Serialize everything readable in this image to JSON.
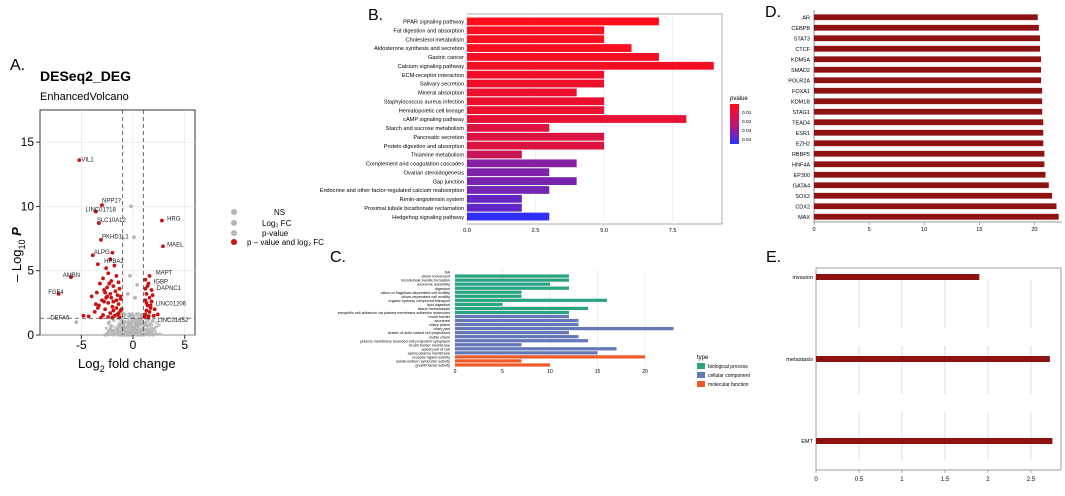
{
  "panel_labels": {
    "A": "A.",
    "B": "B.",
    "C": "C.",
    "D": "D.",
    "E": "E."
  },
  "colors": {
    "ns": "#b5b5b5",
    "sig": "#cc1111",
    "kegg_high": "#ff0d1a",
    "kegg_low": "#2f2fff",
    "bp": "#2aa382",
    "cc": "#6378b8",
    "mf": "#ee5a2a",
    "tf_bar": "#8e1212",
    "ox_bar": "#8e1212"
  },
  "chart_data": [
    {
      "id": "A",
      "type": "scatter",
      "title": "DESeq2_DEG",
      "subtitle": "EnhancedVolcano",
      "xlabel": "Log",
      "xlabel_sub": "2",
      "xlabel_tail": " fold change",
      "ylabel": "– Log",
      "ylabel_sub": "10",
      "ylabel_tail": " P",
      "xlim": [
        -9,
        6
      ],
      "ylim": [
        0,
        17.5
      ],
      "xticks": [
        -5,
        0,
        5
      ],
      "yticks": [
        0,
        5,
        10,
        15
      ],
      "fc_cutoff": [
        -1,
        1
      ],
      "p_cutoff": 1.3,
      "legend": [
        "NS",
        "Log₂ FC",
        "p-value",
        "p – value and log₂ FC"
      ],
      "gene_labels": [
        {
          "name": "VIL1",
          "x": -5.0,
          "y": 13.5
        },
        {
          "name": "NPP1?",
          "x": -3.0,
          "y": 10.3
        },
        {
          "name": "LINC01?18",
          "x": -4.6,
          "y": 9.6
        },
        {
          "name": "SLC10A12",
          "x": -3.5,
          "y": 8.8
        },
        {
          "name": "PKHD1L1",
          "x": -3.0,
          "y": 7.5
        },
        {
          "name": "ALPG",
          "x": -3.8,
          "y": 6.3
        },
        {
          "name": "HPBA2",
          "x": -2.8,
          "y": 5.6
        },
        {
          "name": "AMBN",
          "x": -6.8,
          "y": 4.5
        },
        {
          "name": "FGF4",
          "x": -8.2,
          "y": 3.2
        },
        {
          "name": "DEFA6",
          "x": -8.0,
          "y": 1.2
        },
        {
          "name": "HRG",
          "x": 3.3,
          "y": 8.9
        },
        {
          "name": "MAEL",
          "x": 3.3,
          "y": 6.9
        },
        {
          "name": "MAPT",
          "x": 2.2,
          "y": 4.7
        },
        {
          "name": "IGBP",
          "x": 2.0,
          "y": 4.0
        },
        {
          "name": "DAPNC1",
          "x": 2.3,
          "y": 3.5
        },
        {
          "name": "LINC01206",
          "x": 2.2,
          "y": 2.3
        },
        {
          "name": "LINC01652",
          "x": 2.4,
          "y": 1.0
        }
      ],
      "points": [
        [
          -5.2,
          13.6
        ],
        [
          -3.0,
          10.1
        ],
        [
          -3.6,
          9.6
        ],
        [
          -3.3,
          8.7
        ],
        [
          -3.1,
          7.4
        ],
        [
          -3.9,
          6.2
        ],
        [
          -3.4,
          5.5
        ],
        [
          -6.0,
          4.5
        ],
        [
          -7.2,
          3.2
        ],
        [
          -5.5,
          1.0
        ],
        [
          2.8,
          8.9
        ],
        [
          2.9,
          6.9
        ],
        [
          1.6,
          4.6
        ],
        [
          1.5,
          4.0
        ],
        [
          1.8,
          3.5
        ],
        [
          1.7,
          2.3
        ],
        [
          1.9,
          1.1
        ],
        [
          -2.0,
          6.4
        ],
        [
          -2.2,
          5.9
        ],
        [
          -1.8,
          5.4
        ],
        [
          -2.6,
          5.2
        ],
        [
          -2.4,
          4.8
        ],
        [
          -1.6,
          4.6
        ],
        [
          -2.9,
          4.4
        ],
        [
          -2.1,
          4.2
        ],
        [
          -1.4,
          4.1
        ],
        [
          -3.2,
          4.0
        ],
        [
          -1.9,
          3.8
        ],
        [
          -2.5,
          3.7
        ],
        [
          -1.3,
          3.6
        ],
        [
          -2.8,
          3.5
        ],
        [
          -1.7,
          3.4
        ],
        [
          -3.5,
          3.3
        ],
        [
          -2.2,
          3.2
        ],
        [
          -1.5,
          3.1
        ],
        [
          -4.0,
          3.0
        ],
        [
          -2.6,
          2.9
        ],
        [
          -1.2,
          2.8
        ],
        [
          -3.0,
          2.7
        ],
        [
          -1.9,
          2.6
        ],
        [
          -2.4,
          2.5
        ],
        [
          -1.4,
          2.4
        ],
        [
          -3.3,
          2.3
        ],
        [
          -2.0,
          2.2
        ],
        [
          -1.6,
          2.1
        ],
        [
          -2.7,
          2.0
        ],
        [
          -1.2,
          1.9
        ],
        [
          -3.7,
          1.8
        ],
        [
          -2.2,
          1.7
        ],
        [
          -1.5,
          1.6
        ],
        [
          -2.9,
          1.55
        ],
        [
          -1.8,
          1.5
        ],
        [
          -4.3,
          1.45
        ],
        [
          -2.4,
          1.4
        ],
        [
          -1.3,
          1.38
        ],
        [
          -3.1,
          1.36
        ],
        [
          -2.0,
          1.34
        ],
        [
          -4.8,
          1.5
        ],
        [
          -3.6,
          2.4
        ],
        [
          -2.5,
          3.0
        ],
        [
          -1.1,
          2.0
        ],
        [
          -1.2,
          3.0
        ],
        [
          -1.6,
          2.7
        ],
        [
          -2.3,
          4.0
        ],
        [
          -2.7,
          3.3
        ],
        [
          -3.4,
          2.1
        ],
        [
          -1.9,
          1.9
        ],
        [
          -2.1,
          2.9
        ],
        [
          -1.4,
          1.7
        ],
        [
          -2.8,
          2.6
        ],
        [
          1.2,
          4.3
        ],
        [
          1.4,
          3.8
        ],
        [
          1.3,
          3.2
        ],
        [
          1.6,
          2.9
        ],
        [
          1.2,
          2.7
        ],
        [
          1.8,
          2.6
        ],
        [
          1.4,
          2.3
        ],
        [
          2.1,
          2.0
        ],
        [
          1.3,
          1.9
        ],
        [
          1.6,
          1.8
        ],
        [
          1.2,
          1.6
        ],
        [
          2.0,
          1.5
        ],
        [
          1.5,
          1.45
        ],
        [
          1.1,
          1.4
        ],
        [
          2.4,
          1.6
        ],
        [
          1.7,
          2.1
        ],
        [
          1.3,
          2.5
        ],
        [
          1.9,
          3.1
        ],
        [
          1.2,
          3.6
        ],
        [
          1.5,
          1.35
        ],
        [
          -0.2,
          10.0
        ],
        [
          0.1,
          7.6
        ],
        [
          -0.3,
          4.6
        ],
        [
          0.4,
          3.9
        ],
        [
          -0.5,
          3.2
        ],
        [
          0.2,
          2.9
        ]
      ]
    },
    {
      "id": "B",
      "type": "bar",
      "orientation": "horizontal",
      "categories": [
        "PPAR signaling pathway",
        "Fat digestion and absorption",
        "Cholesterol metabolism",
        "Aldosterone synthesis and secretion",
        "Gastric cancer",
        "Calcium signaling pathway",
        "ECM-receptor interaction",
        "Salivary secretion",
        "Mineral absorption",
        "Staphylococcus aureus infection",
        "Hematopoietic cell lineage",
        "cAMP signaling pathway",
        "Starch and sucrose metabolism",
        "Pancreatic secretion",
        "Protein digestion and absorption",
        "Thiamine metabolism",
        "Complement and coagulation cascades",
        "Ovarian steroidogenesis",
        "Gap junction",
        "Endocrine and other factor-regulated calcium reabsorption",
        "Renin-angiotensin system",
        "Proximal tubule bicarbonate reclamation",
        "Hedgehog signaling pathway"
      ],
      "values": [
        7,
        5,
        5,
        6,
        7,
        9,
        5,
        5,
        4,
        5,
        5,
        8,
        3,
        5,
        5,
        2,
        4,
        3,
        4,
        3,
        2,
        2,
        3
      ],
      "pvalues": [
        0.003,
        0.004,
        0.004,
        0.004,
        0.005,
        0.005,
        0.006,
        0.006,
        0.007,
        0.007,
        0.007,
        0.008,
        0.01,
        0.01,
        0.01,
        0.014,
        0.028,
        0.029,
        0.03,
        0.031,
        0.034,
        0.035,
        0.045
      ],
      "xlim": [
        0,
        9.3
      ],
      "xticks": [
        "0.0",
        "2.5",
        "5.0",
        "7.5"
      ],
      "xtick_values": [
        0,
        2.5,
        5,
        7.5
      ],
      "legend_title": "pvalue",
      "legend_ticks": [
        "0.01",
        "0.02",
        "0.03",
        "0.04"
      ]
    },
    {
      "id": "C",
      "type": "bar",
      "orientation": "horizontal",
      "categories": [
        "NA",
        "cilium movement",
        "microtubule bundle formation",
        "axoneme assembly",
        "digestion",
        "cilium or flagellum-dependent cell motility",
        "cilium-dependent cell motility",
        "organic hydroxy compound transport",
        "lipid digestion",
        "tissue homeostasis",
        "emophilic cell adhesion via plasma membrane adhesion molecules",
        "brush border",
        "axoneme",
        "ciliary plasm",
        "cilary part",
        "cluster of actin-based cell projections",
        "motile cilium",
        "plasma membrane bounded cell projection cytoplasm",
        "brush border membrane",
        "apical part of cell",
        "apical plasma membrane",
        "receptor ligand activity",
        "solute:sodium symporter activity",
        "growth factor activity"
      ],
      "values": [
        0,
        12,
        12,
        10,
        12,
        7,
        7,
        16,
        5,
        14,
        12,
        12,
        13,
        13,
        23,
        12,
        13,
        14,
        7,
        17,
        15,
        20,
        7,
        10
      ],
      "types": [
        "none",
        "bp",
        "bp",
        "bp",
        "bp",
        "bp",
        "bp",
        "bp",
        "bp",
        "bp",
        "bp",
        "cc",
        "cc",
        "cc",
        "cc",
        "cc",
        "cc",
        "cc",
        "cc",
        "cc",
        "cc",
        "mf",
        "mf",
        "mf"
      ],
      "xlim": [
        0,
        24
      ],
      "xticks": [
        "0",
        "5",
        "10",
        "15",
        "20"
      ],
      "xtick_values": [
        0,
        5,
        10,
        15,
        20
      ],
      "legend_title": "type",
      "legend": [
        "biological process",
        "cellular component",
        "molecular function"
      ]
    },
    {
      "id": "D",
      "type": "bar",
      "orientation": "horizontal",
      "categories": [
        "AR",
        "CEBPB",
        "STAT3",
        "CTCF",
        "KDM5A",
        "SMAD2",
        "POLR2A",
        "FOXA1",
        "KDM1B",
        "STAG1",
        "TEAD4",
        "ESR1",
        "EZH2",
        "RBBP5",
        "HNF4A",
        "EP300",
        "GATA4",
        "SOX2",
        "CDX2",
        "MAX"
      ],
      "values": [
        20.3,
        20.4,
        20.5,
        20.5,
        20.6,
        20.6,
        20.6,
        20.7,
        20.7,
        20.7,
        20.8,
        20.8,
        20.8,
        20.9,
        20.9,
        21.0,
        21.3,
        21.6,
        22.0,
        22.2
      ],
      "xlim": [
        0,
        22.5
      ],
      "xticks": [
        "0",
        "5",
        "10",
        "15",
        "20"
      ],
      "xtick_values": [
        0,
        5,
        10,
        15,
        20
      ]
    },
    {
      "id": "E",
      "type": "bar",
      "orientation": "horizontal",
      "categories": [
        "invasion",
        "metastasis",
        "EMT"
      ],
      "values": [
        1.9,
        2.72,
        2.75
      ],
      "xlim": [
        0,
        2.85
      ],
      "xticks": [
        "0",
        "0.5",
        "1",
        "1.5",
        "2",
        "2.5"
      ],
      "xtick_values": [
        0,
        0.5,
        1,
        1.5,
        2,
        2.5
      ]
    }
  ]
}
